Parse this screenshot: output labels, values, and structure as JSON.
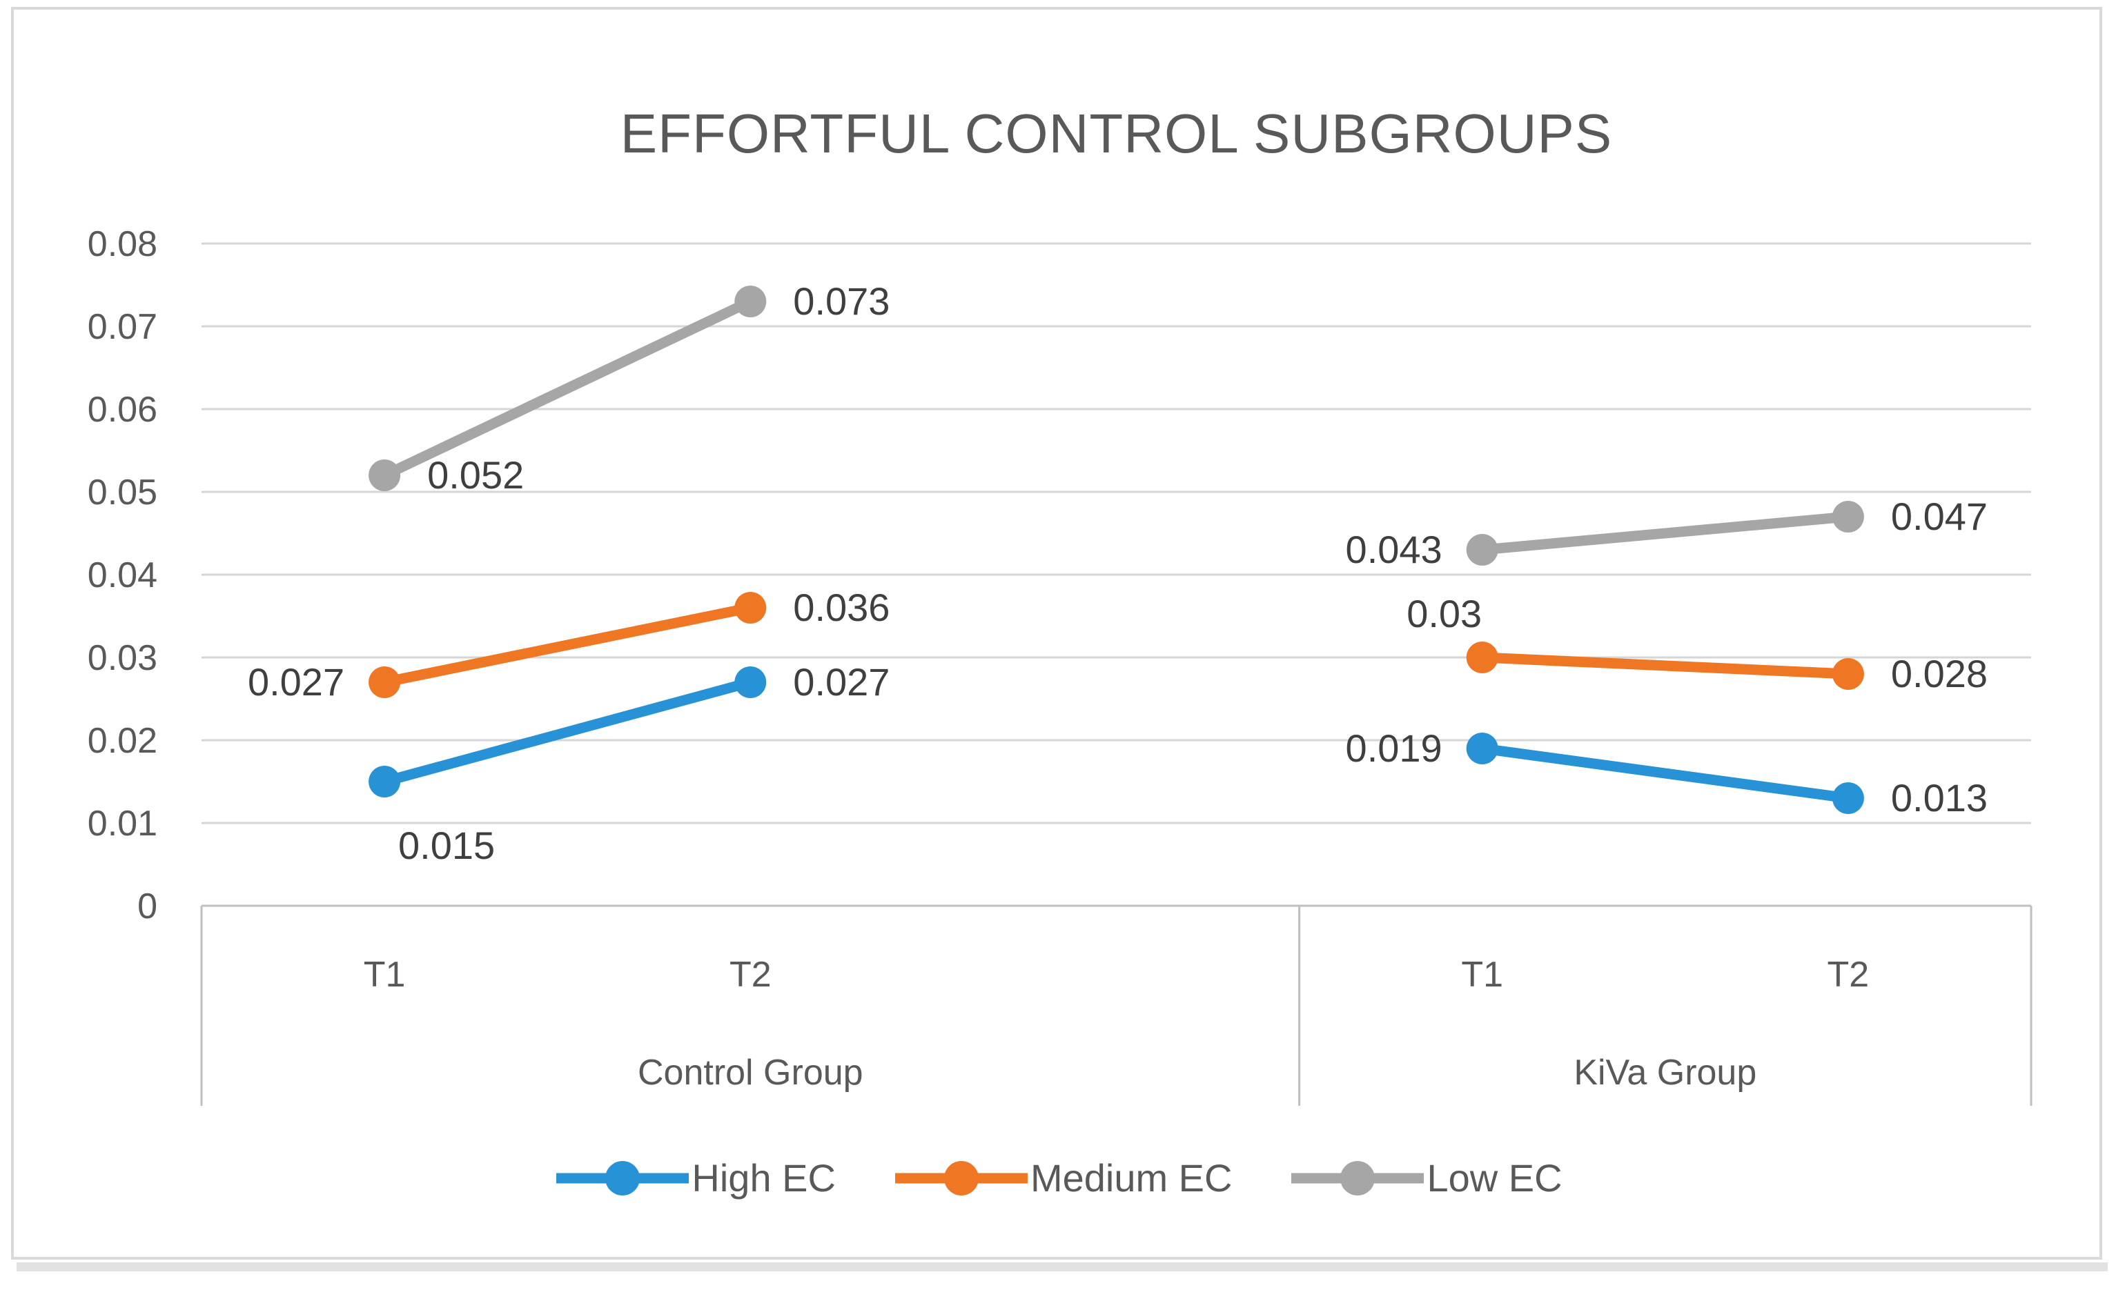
{
  "chart_data": {
    "type": "line",
    "title": "EFFORTFUL CONTROL SUBGROUPS",
    "ylim": [
      0,
      0.08
    ],
    "ytick_labels": [
      "0",
      "0.01",
      "0.02",
      "0.03",
      "0.04",
      "0.05",
      "0.06",
      "0.07",
      "0.08"
    ],
    "grid": true,
    "legend_position": "bottom",
    "colors": {
      "axis_line": "#bfbfbf",
      "gridline": "#d6d6d6",
      "axis_text": "#595959",
      "data_label_text": "#3f3f3f",
      "title_text": "#595959"
    },
    "x_groups": [
      {
        "label": "Control Group",
        "categories": [
          "T1",
          "T2"
        ]
      },
      {
        "label": "KiVa Group",
        "categories": [
          "T1",
          "T2"
        ]
      }
    ],
    "series": [
      {
        "name": "High EC",
        "color": "#2793d6",
        "points": [
          {
            "group": "Control Group",
            "category": "T1",
            "value": 0.015,
            "label": "0.015",
            "label_placement": "below-right"
          },
          {
            "group": "Control Group",
            "category": "T2",
            "value": 0.027,
            "label": "0.027",
            "label_placement": "right"
          },
          {
            "group": "KiVa Group",
            "category": "T1",
            "value": 0.019,
            "label": "0.019",
            "label_placement": "left"
          },
          {
            "group": "KiVa Group",
            "category": "T2",
            "value": 0.013,
            "label": "0.013",
            "label_placement": "right"
          }
        ]
      },
      {
        "name": "Medium EC",
        "color": "#ef7623",
        "points": [
          {
            "group": "Control Group",
            "category": "T1",
            "value": 0.027,
            "label": "0.027",
            "label_placement": "left"
          },
          {
            "group": "Control Group",
            "category": "T2",
            "value": 0.036,
            "label": "0.036",
            "label_placement": "right"
          },
          {
            "group": "KiVa Group",
            "category": "T1",
            "value": 0.03,
            "label": "0.03",
            "label_placement": "above-left"
          },
          {
            "group": "KiVa Group",
            "category": "T2",
            "value": 0.028,
            "label": "0.028",
            "label_placement": "right"
          }
        ]
      },
      {
        "name": "Low EC",
        "color": "#a6a6a6",
        "points": [
          {
            "group": "Control Group",
            "category": "T1",
            "value": 0.052,
            "label": "0.052",
            "label_placement": "right"
          },
          {
            "group": "Control Group",
            "category": "T2",
            "value": 0.073,
            "label": "0.073",
            "label_placement": "right"
          },
          {
            "group": "KiVa Group",
            "category": "T1",
            "value": 0.043,
            "label": "0.043",
            "label_placement": "left"
          },
          {
            "group": "KiVa Group",
            "category": "T2",
            "value": 0.047,
            "label": "0.047",
            "label_placement": "right"
          }
        ]
      }
    ]
  }
}
